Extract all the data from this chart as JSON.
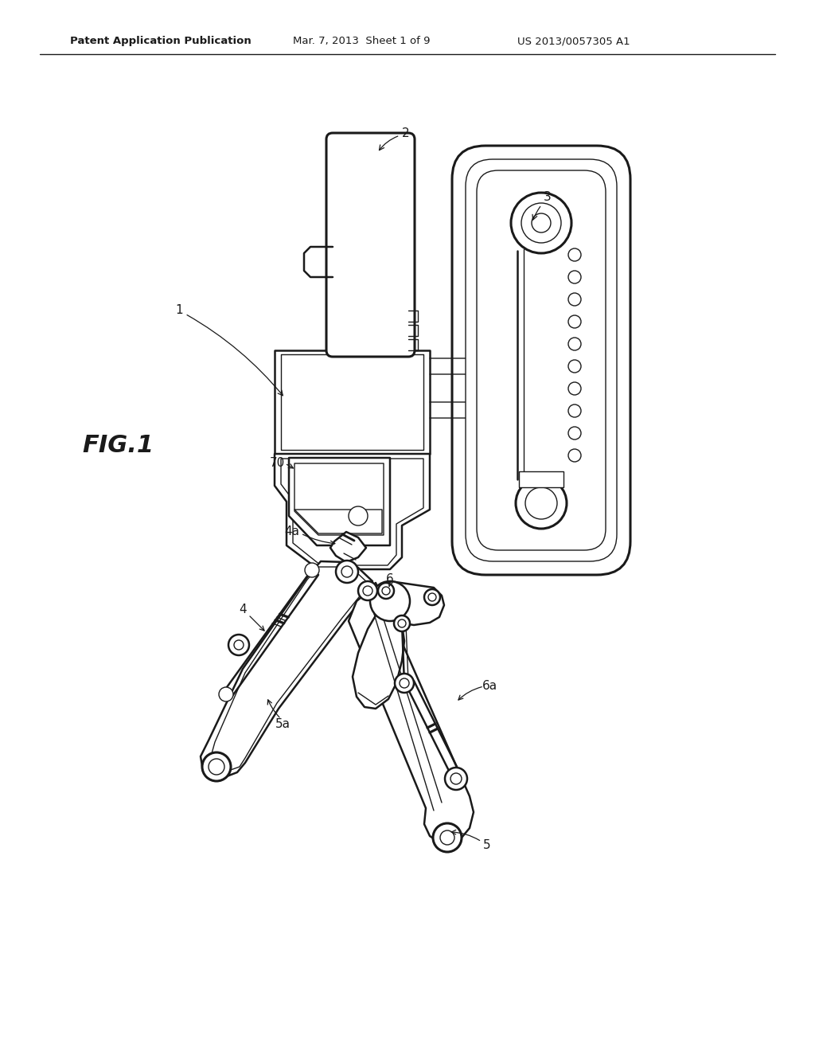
{
  "background_color": "#ffffff",
  "line_color": "#1a1a1a",
  "header_left": "Patent Application Publication",
  "header_mid": "Mar. 7, 2013  Sheet 1 of 9",
  "header_right": "US 2013/0057305 A1",
  "figure_label": "FIG.1",
  "lw_main": 1.8,
  "lw_thin": 1.0,
  "lw_thick": 2.2
}
